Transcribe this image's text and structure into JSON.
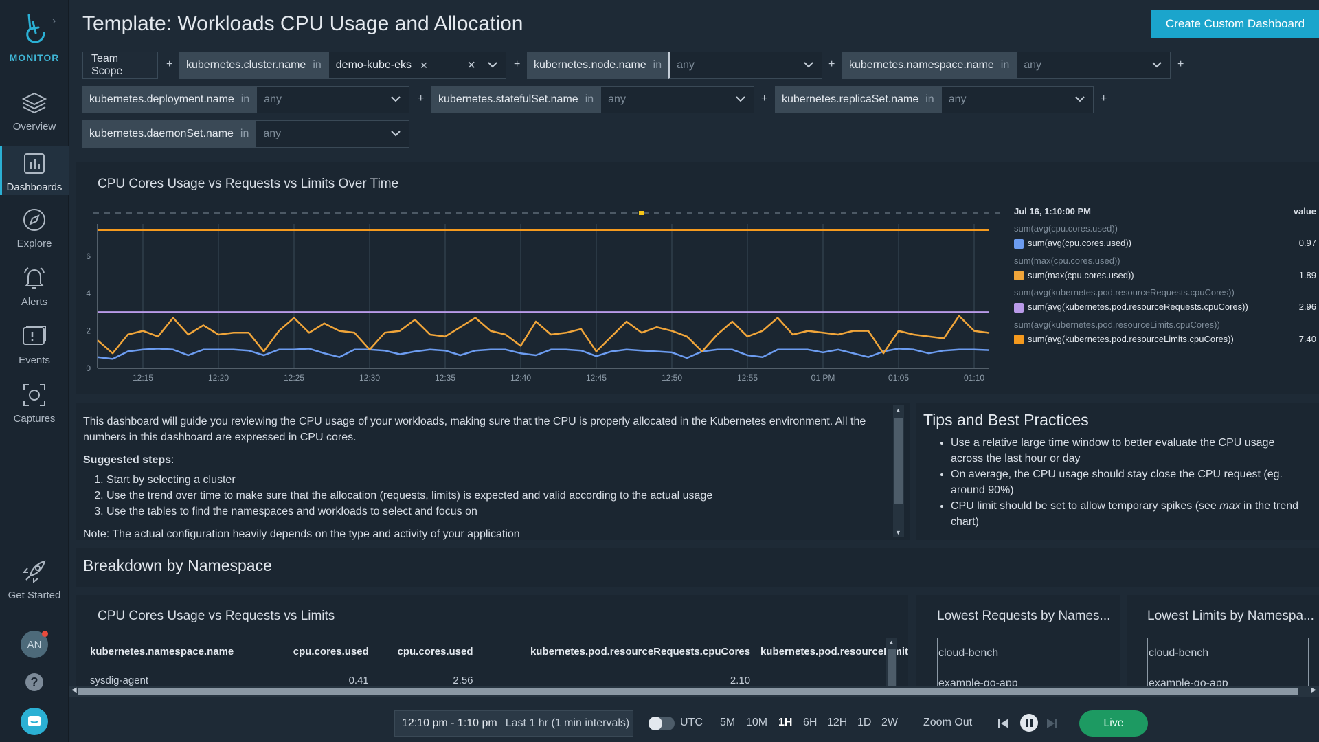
{
  "sidebar": {
    "brand": "MONITOR",
    "items": [
      {
        "label": "Overview",
        "icon": "layers-icon"
      },
      {
        "label": "Dashboards",
        "icon": "bar-chart-icon",
        "active": true
      },
      {
        "label": "Explore",
        "icon": "compass-icon"
      },
      {
        "label": "Alerts",
        "icon": "bell-icon"
      },
      {
        "label": "Events",
        "icon": "events-icon"
      },
      {
        "label": "Captures",
        "icon": "capture-icon"
      }
    ],
    "get_started": "Get Started",
    "avatar_initials": "AN",
    "help": "?"
  },
  "header": {
    "title": "Template:  Workloads CPU Usage and Allocation",
    "create_button": "Create Custom Dashboard"
  },
  "filters": {
    "scope_label": "Team Scope",
    "plus": "+",
    "in": "in",
    "items": [
      {
        "key": "kubernetes.cluster.name",
        "value": "demo-kube-eks"
      },
      {
        "key": "kubernetes.node.name",
        "value": "",
        "placeholder": "any"
      },
      {
        "key": "kubernetes.namespace.name",
        "value": "",
        "placeholder": "any"
      },
      {
        "key": "kubernetes.deployment.name",
        "value": "",
        "placeholder": "any"
      },
      {
        "key": "kubernetes.statefulSet.name",
        "value": "",
        "placeholder": "any"
      },
      {
        "key": "kubernetes.replicaSet.name",
        "value": "",
        "placeholder": "any"
      },
      {
        "key": "kubernetes.daemonSet.name",
        "value": "",
        "placeholder": "any"
      }
    ]
  },
  "chart_panel": {
    "title": "CPU Cores Usage vs Requests vs Limits Over Time",
    "legend": {
      "timestamp": "Jul 16, 1:10:00 PM",
      "value_header": "value",
      "entries": [
        {
          "group": "sum(avg(cpu.cores.used))",
          "label": "sum(avg(cpu.cores.used))",
          "value": "0.97",
          "color": "#6c9cf0"
        },
        {
          "group": "sum(max(cpu.cores.used))",
          "label": "sum(max(cpu.cores.used))",
          "value": "1.89",
          "color": "#f0a53a"
        },
        {
          "group": "sum(avg(kubernetes.pod.resourceRequests.cpuCores))",
          "label": "sum(avg(kubernetes.pod.resourceRequests.cpuCores))",
          "value": "2.96",
          "color": "#b99ae8"
        },
        {
          "group": "sum(avg(kubernetes.pod.resourceLimits.cpuCores))",
          "label": "sum(avg(kubernetes.pod.resourceLimits.cpuCores))",
          "value": "7.40",
          "color": "#f59a1e"
        }
      ]
    }
  },
  "chart_data": {
    "type": "line",
    "title": "CPU Cores Usage vs Requests vs Limits Over Time",
    "xlabel": "",
    "ylabel": "",
    "x_ticks": [
      "12:15",
      "12:20",
      "12:25",
      "12:30",
      "12:35",
      "12:40",
      "12:45",
      "12:50",
      "12:55",
      "01 PM",
      "01:05",
      "01:10"
    ],
    "y_ticks": [
      0,
      2,
      4,
      6
    ],
    "ylim": [
      0,
      7.5
    ],
    "x_start_minute": 12.0,
    "x_end_minute": 71.0,
    "series": [
      {
        "color": "#6c9cf0",
        "values": [
          0.6,
          0.5,
          0.9,
          1.0,
          1.05,
          1.0,
          0.7,
          1.0,
          1.0,
          1.0,
          0.95,
          0.7,
          1.0,
          1.0,
          1.05,
          0.8,
          0.6,
          1.0,
          1.0,
          0.95,
          0.75,
          0.9,
          1.0,
          0.95,
          0.7,
          0.95,
          1.0,
          1.0,
          0.8,
          0.7,
          1.0,
          1.0,
          0.95,
          0.65,
          0.9,
          1.0,
          0.95,
          0.9,
          0.85,
          0.55,
          0.9,
          1.0,
          1.0,
          0.7,
          0.6,
          1.0,
          1.0,
          1.0,
          0.85,
          1.0,
          0.8,
          0.6,
          0.9,
          1.05,
          1.0,
          0.8,
          0.95,
          1.0,
          1.0,
          0.97
        ]
      },
      {
        "color": "#f0a53a",
        "values": [
          1.5,
          0.8,
          1.8,
          2.0,
          1.7,
          2.7,
          1.8,
          2.3,
          1.8,
          1.9,
          1.9,
          0.9,
          2.0,
          2.7,
          1.9,
          2.4,
          2.0,
          1.9,
          1.0,
          1.9,
          2.0,
          2.6,
          1.8,
          1.7,
          2.2,
          2.7,
          2.0,
          1.8,
          1.2,
          2.5,
          1.8,
          1.9,
          2.1,
          0.9,
          1.7,
          2.5,
          1.9,
          2.2,
          2.0,
          1.7,
          0.9,
          1.8,
          2.5,
          1.7,
          2.0,
          2.7,
          1.8,
          2.0,
          1.9,
          1.8,
          2.0,
          2.0,
          0.8,
          2.0,
          1.8,
          1.7,
          1.6,
          2.8,
          2.0,
          1.89
        ]
      },
      {
        "color": "#b99ae8",
        "values": [
          3.0,
          3.0
        ]
      },
      {
        "color": "#f59a1e",
        "values": [
          7.4,
          7.4
        ]
      }
    ]
  },
  "description_panel": {
    "intro": "This dashboard will guide you reviewing the CPU usage of your workloads, making sure that the CPU is properly allocated in the Kubernetes environment. All the numbers in this dashboard are expressed in CPU cores.",
    "steps_label": "Suggested steps",
    "steps_colon": ":",
    "steps": [
      "Start by selecting a cluster",
      "Use the trend over time to make sure that the allocation (requests, limits) is expected and valid according to the actual usage",
      "Use the tables to find the namespaces and workloads to select and focus on"
    ],
    "note_cut": "Note: The actual configuration heavily depends on the type and activity of your application"
  },
  "tips_panel": {
    "title": "Tips and Best Practices",
    "tips": [
      {
        "text": "Use a relative large time window to better evaluate the CPU usage across the last hour or day"
      },
      {
        "text": "On average, the CPU usage should stay close the CPU request (eg. around 90%)"
      },
      {
        "pre": "CPU limit should be set to allow temporary spikes (see ",
        "em": "max",
        "post": " in the trend chart)"
      }
    ]
  },
  "breakdown": {
    "section_title": "Breakdown by Namespace",
    "table_panel": {
      "title": "CPU Cores Usage vs Requests vs Limits",
      "columns": [
        "kubernetes.namespace.name",
        "cpu.cores.used",
        "cpu.cores.used",
        "kubernetes.pod.resourceRequests.cpuCores",
        "kubernetes.pod.resourceLimit"
      ],
      "rows": [
        [
          "sysdig-agent",
          "0.41",
          "2.56",
          "2.10",
          ""
        ]
      ]
    },
    "requests_panel": {
      "title": "Lowest Requests by Names...",
      "items": [
        "cloud-bench",
        "example-go-app"
      ]
    },
    "limits_panel": {
      "title": "Lowest Limits by Namespa...",
      "items": [
        "cloud-bench",
        "example-go-app"
      ]
    }
  },
  "timebar": {
    "range": "12:10 pm - 1:10 pm",
    "range_sub": "Last 1 hr (1 min intervals)",
    "utc": "UTC",
    "windows": [
      "5M",
      "10M",
      "1H",
      "6H",
      "12H",
      "1D",
      "2W"
    ],
    "active_window": "1H",
    "zoom_out": "Zoom Out",
    "live": "Live"
  }
}
